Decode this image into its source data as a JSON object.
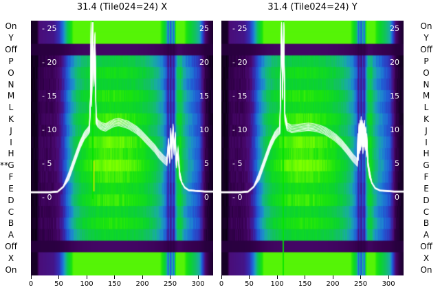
{
  "figure": {
    "title_left": "31.4 (Tile024=24) X",
    "title_right": "31.4 (Tile024=24) Y"
  },
  "star_marker": "**",
  "star_row_index": 12,
  "row_labels_left": [
    "On",
    "Y",
    "Off",
    "P",
    "O",
    "N",
    "M",
    "L",
    "K",
    "J",
    "I",
    "H",
    "G",
    "F",
    "E",
    "D",
    "C",
    "B",
    "A",
    "Off",
    "X",
    "On"
  ],
  "row_labels_right": [
    "On",
    "Y",
    "Off",
    "P",
    "O",
    "N",
    "M",
    "L",
    "K",
    "J",
    "I",
    "H",
    "G",
    "F",
    "E",
    "D",
    "C",
    "B",
    "A",
    "Off",
    "X",
    "On"
  ],
  "chart_data": {
    "type": "heatmap",
    "subtype": "spectrogram_with_line_overlay",
    "x_range": [
      0,
      327
    ],
    "x_ticks": [
      0,
      50,
      100,
      150,
      200,
      250,
      300
    ],
    "y_tick_values": [
      25,
      20,
      15,
      10,
      5,
      0
    ],
    "row_labels": [
      "On",
      "Y",
      "Off",
      "P",
      "O",
      "N",
      "M",
      "L",
      "K",
      "J",
      "I",
      "H",
      "G",
      "F",
      "E",
      "D",
      "C",
      "B",
      "A",
      "Off",
      "X",
      "On"
    ],
    "n_traces": 7,
    "trace_spread": 0.18,
    "colormap": [
      [
        0.0,
        "#08000f"
      ],
      [
        0.08,
        "#1c0030"
      ],
      [
        0.15,
        "#36004f"
      ],
      [
        0.22,
        "#4b0a72"
      ],
      [
        0.3,
        "#3c1f9e"
      ],
      [
        0.38,
        "#2b3fc4"
      ],
      [
        0.46,
        "#1f63d6"
      ],
      [
        0.54,
        "#1d8ccd"
      ],
      [
        0.62,
        "#18ae9e"
      ],
      [
        0.7,
        "#12c162"
      ],
      [
        0.8,
        "#0bd42f"
      ],
      [
        0.9,
        "#1ae40e"
      ],
      [
        1.0,
        "#7dff00"
      ]
    ],
    "heatmap_profile": {
      "col_stops": [
        [
          0,
          0.04
        ],
        [
          10,
          0.04
        ],
        [
          14,
          0.16
        ],
        [
          40,
          0.18
        ],
        [
          50,
          0.24
        ],
        [
          58,
          0.36
        ],
        [
          66,
          0.52
        ],
        [
          74,
          0.64
        ],
        [
          82,
          0.74
        ],
        [
          92,
          0.82
        ],
        [
          105,
          0.88
        ],
        [
          120,
          0.92
        ],
        [
          140,
          0.94
        ],
        [
          165,
          0.93
        ],
        [
          185,
          0.9
        ],
        [
          200,
          0.86
        ],
        [
          212,
          0.8
        ],
        [
          225,
          0.72
        ],
        [
          235,
          0.62
        ],
        [
          242,
          0.5
        ],
        [
          246,
          0.3
        ],
        [
          248,
          0.45
        ],
        [
          250,
          0.26
        ],
        [
          253,
          0.45
        ],
        [
          256,
          0.3
        ],
        [
          259,
          0.6
        ],
        [
          263,
          0.8
        ],
        [
          268,
          0.82
        ],
        [
          273,
          0.68
        ],
        [
          282,
          0.58
        ],
        [
          292,
          0.5
        ],
        [
          302,
          0.42
        ],
        [
          308,
          0.26
        ],
        [
          313,
          0.14
        ],
        [
          320,
          0.08
        ],
        [
          327,
          0.05
        ]
      ],
      "row_types": [
        "bright",
        "bright",
        "off",
        "main",
        "main",
        "main",
        "main",
        "main",
        "main",
        "main",
        "main",
        "main",
        "main",
        "main",
        "main",
        "main",
        "main",
        "main",
        "main",
        "off",
        "bright",
        "bright"
      ],
      "row_gain": [
        1,
        1,
        1,
        0.82,
        0.92,
        0.86,
        0.97,
        0.9,
        1.0,
        0.94,
        1.04,
        1.0,
        1.06,
        1.0,
        0.93,
        0.99,
        0.88,
        0.96,
        0.86,
        1,
        1,
        1
      ]
    },
    "panels": [
      {
        "name": "X",
        "title": "31.4 (Tile024=24) X",
        "vlines": [
          {
            "x": 111,
            "color": "#00e400",
            "frac_top": 0.0,
            "frac_bottom": 0.7
          },
          {
            "x": 113,
            "color": "#d4e800",
            "frac_top": 0.55,
            "frac_bottom": 0.67
          }
        ],
        "line": [
          [
            0,
            0.8
          ],
          [
            35,
            0.8
          ],
          [
            48,
            0.9
          ],
          [
            58,
            1.6
          ],
          [
            68,
            3.2
          ],
          [
            78,
            5.5
          ],
          [
            88,
            7.8
          ],
          [
            96,
            9.2
          ],
          [
            102,
            9.8
          ],
          [
            105,
            10.2
          ],
          [
            107,
            15
          ],
          [
            108,
            25.5
          ],
          [
            109,
            14
          ],
          [
            111,
            26.5
          ],
          [
            113,
            17
          ],
          [
            115,
            24
          ],
          [
            117,
            11.5
          ],
          [
            120,
            11
          ],
          [
            126,
            10.6
          ],
          [
            134,
            10.4
          ],
          [
            142,
            10.8
          ],
          [
            150,
            11.1
          ],
          [
            158,
            11.2
          ],
          [
            166,
            11
          ],
          [
            174,
            10.8
          ],
          [
            182,
            10.4
          ],
          [
            190,
            10
          ],
          [
            198,
            9.4
          ],
          [
            206,
            8.7
          ],
          [
            214,
            8
          ],
          [
            222,
            7.3
          ],
          [
            230,
            6.4
          ],
          [
            238,
            5.7
          ],
          [
            244,
            5.3
          ],
          [
            247,
            8.3
          ],
          [
            249,
            5.6
          ],
          [
            251,
            9.8
          ],
          [
            253,
            6.2
          ],
          [
            255,
            10.4
          ],
          [
            257,
            6.8
          ],
          [
            259,
            9.2
          ],
          [
            261,
            4.9
          ],
          [
            264,
            6.8
          ],
          [
            267,
            3.4
          ],
          [
            271,
            2.2
          ],
          [
            276,
            1.5
          ],
          [
            283,
            1.1
          ],
          [
            295,
            1.0
          ],
          [
            312,
            0.9
          ],
          [
            327,
            0.9
          ]
        ]
      },
      {
        "name": "Y",
        "title": "31.4 (Tile024=24) Y",
        "vlines": [
          {
            "x": 111,
            "color": "#00e400",
            "frac_top": 0.0,
            "frac_bottom": 1.0
          }
        ],
        "line": [
          [
            0,
            0.8
          ],
          [
            35,
            0.8
          ],
          [
            48,
            0.9
          ],
          [
            58,
            1.6
          ],
          [
            68,
            3.2
          ],
          [
            78,
            5.5
          ],
          [
            88,
            7.8
          ],
          [
            96,
            9.2
          ],
          [
            102,
            9.8
          ],
          [
            105,
            10
          ],
          [
            107,
            20
          ],
          [
            108,
            26
          ],
          [
            110,
            15
          ],
          [
            112,
            25.5
          ],
          [
            114,
            12
          ],
          [
            118,
            10.5
          ],
          [
            126,
            10.2
          ],
          [
            136,
            10.3
          ],
          [
            146,
            10.4
          ],
          [
            156,
            10.5
          ],
          [
            166,
            10.4
          ],
          [
            176,
            10.2
          ],
          [
            186,
            9.9
          ],
          [
            196,
            9.4
          ],
          [
            206,
            8.8
          ],
          [
            216,
            8.0
          ],
          [
            226,
            7.0
          ],
          [
            236,
            5.9
          ],
          [
            242,
            5.4
          ],
          [
            244,
            5.2
          ],
          [
            245,
            9
          ],
          [
            246,
            6
          ],
          [
            247,
            10.5
          ],
          [
            248,
            7
          ],
          [
            249,
            11
          ],
          [
            250,
            7.5
          ],
          [
            251,
            11.5
          ],
          [
            252,
            8
          ],
          [
            253,
            11
          ],
          [
            254,
            7
          ],
          [
            255,
            10.5
          ],
          [
            256,
            8
          ],
          [
            257,
            11
          ],
          [
            258,
            7.5
          ],
          [
            259,
            10
          ],
          [
            260,
            6.5
          ],
          [
            261,
            9
          ],
          [
            263,
            5
          ],
          [
            266,
            3.5
          ],
          [
            270,
            2.2
          ],
          [
            276,
            1.4
          ],
          [
            285,
            1.05
          ],
          [
            310,
            0.9
          ],
          [
            327,
            0.9
          ]
        ]
      }
    ]
  }
}
